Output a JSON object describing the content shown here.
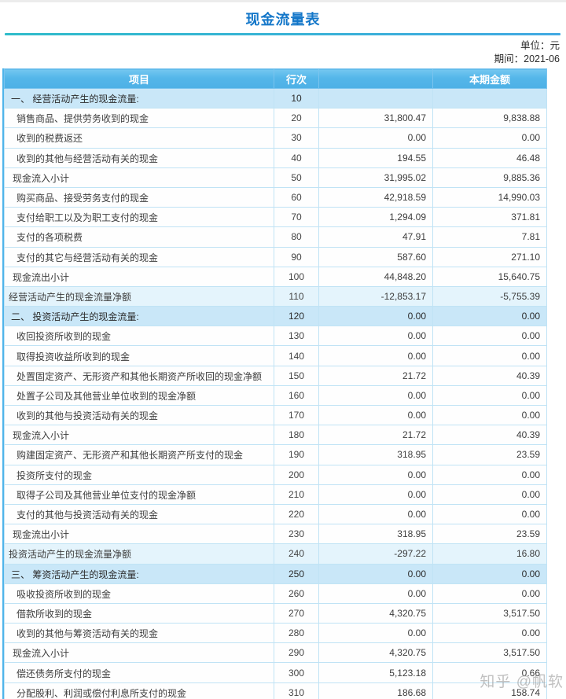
{
  "page": {
    "title": "现金流量表",
    "unit_label": "单位：元",
    "period_label": "期间：2021-06"
  },
  "table": {
    "headers": {
      "item": "项目",
      "line_no": "行次",
      "mid": "",
      "amount": "本期金额"
    },
    "rows": [
      {
        "label": "一、 经营活动产生的现金流量:",
        "line": "10",
        "v1": "",
        "v2": "",
        "type": "section"
      },
      {
        "label": "销售商品、提供劳务收到的现金",
        "line": "20",
        "v1": "31,800.47",
        "v2": "9,838.88",
        "type": "item"
      },
      {
        "label": "收到的税费返还",
        "line": "30",
        "v1": "0.00",
        "v2": "0.00",
        "type": "item"
      },
      {
        "label": "收到的其他与经营活动有关的现金",
        "line": "40",
        "v1": "194.55",
        "v2": "46.48",
        "type": "item"
      },
      {
        "label": "现金流入小计",
        "line": "50",
        "v1": "31,995.02",
        "v2": "9,885.36",
        "type": "subtotal"
      },
      {
        "label": "购买商品、接受劳务支付的现金",
        "line": "60",
        "v1": "42,918.59",
        "v2": "14,990.03",
        "type": "item"
      },
      {
        "label": "支付给职工以及为职工支付的现金",
        "line": "70",
        "v1": "1,294.09",
        "v2": "371.81",
        "type": "item"
      },
      {
        "label": "支付的各项税费",
        "line": "80",
        "v1": "47.91",
        "v2": "7.81",
        "type": "item"
      },
      {
        "label": "支付的其它与经营活动有关的现金",
        "line": "90",
        "v1": "587.60",
        "v2": "271.10",
        "type": "item"
      },
      {
        "label": "现金流出小计",
        "line": "100",
        "v1": "44,848.20",
        "v2": "15,640.75",
        "type": "subtotal"
      },
      {
        "label": "经营活动产生的现金流量净额",
        "line": "110",
        "v1": "-12,853.17",
        "v2": "-5,755.39",
        "type": "net"
      },
      {
        "label": "二、 投资活动产生的现金流量:",
        "line": "120",
        "v1": "0.00",
        "v2": "0.00",
        "type": "section"
      },
      {
        "label": "收回投资所收到的现金",
        "line": "130",
        "v1": "0.00",
        "v2": "0.00",
        "type": "item"
      },
      {
        "label": "取得投资收益所收到的现金",
        "line": "140",
        "v1": "0.00",
        "v2": "0.00",
        "type": "item"
      },
      {
        "label": "处置固定资产、无形资产和其他长期资产所收回的现金净额",
        "line": "150",
        "v1": "21.72",
        "v2": "40.39",
        "type": "item"
      },
      {
        "label": "处置子公司及其他营业单位收到的现金净额",
        "line": "160",
        "v1": "0.00",
        "v2": "0.00",
        "type": "item"
      },
      {
        "label": "收到的其他与投资活动有关的现金",
        "line": "170",
        "v1": "0.00",
        "v2": "0.00",
        "type": "item"
      },
      {
        "label": "现金流入小计",
        "line": "180",
        "v1": "21.72",
        "v2": "40.39",
        "type": "subtotal"
      },
      {
        "label": "购建固定资产、无形资产和其他长期资产所支付的现金",
        "line": "190",
        "v1": "318.95",
        "v2": "23.59",
        "type": "item"
      },
      {
        "label": "投资所支付的现金",
        "line": "200",
        "v1": "0.00",
        "v2": "0.00",
        "type": "item"
      },
      {
        "label": "取得子公司及其他营业单位支付的现金净额",
        "line": "210",
        "v1": "0.00",
        "v2": "0.00",
        "type": "item"
      },
      {
        "label": "支付的其他与投资活动有关的现金",
        "line": "220",
        "v1": "0.00",
        "v2": "0.00",
        "type": "item"
      },
      {
        "label": "现金流出小计",
        "line": "230",
        "v1": "318.95",
        "v2": "23.59",
        "type": "subtotal"
      },
      {
        "label": "投资活动产生的现金流量净额",
        "line": "240",
        "v1": "-297.22",
        "v2": "16.80",
        "type": "net"
      },
      {
        "label": "三、 筹资活动产生的现金流量:",
        "line": "250",
        "v1": "0.00",
        "v2": "0.00",
        "type": "section"
      },
      {
        "label": "吸收投资所收到的现金",
        "line": "260",
        "v1": "0.00",
        "v2": "0.00",
        "type": "item"
      },
      {
        "label": "借款所收到的现金",
        "line": "270",
        "v1": "4,320.75",
        "v2": "3,517.50",
        "type": "item"
      },
      {
        "label": "收到的其他与筹资活动有关的现金",
        "line": "280",
        "v1": "0.00",
        "v2": "0.00",
        "type": "item"
      },
      {
        "label": "现金流入小计",
        "line": "290",
        "v1": "4,320.75",
        "v2": "3,517.50",
        "type": "subtotal"
      },
      {
        "label": "偿还债务所支付的现金",
        "line": "300",
        "v1": "5,123.18",
        "v2": "0.66",
        "type": "item"
      },
      {
        "label": "分配股利、利润或偿付利息所支付的现金",
        "line": "310",
        "v1": "186.68",
        "v2": "158.74",
        "type": "item"
      }
    ]
  },
  "watermark": {
    "text": "知乎 @帆软"
  },
  "colors": {
    "title": "#1477c9",
    "header_bg": "#54b6e9",
    "section_row_bg": "#c9e7f8",
    "net_row_bg": "#e4f4fc",
    "border": "#c0e3f5",
    "rule_left": "#2fbcca",
    "rule_right": "#41a9e2",
    "watermark": "#8f8f8f"
  }
}
